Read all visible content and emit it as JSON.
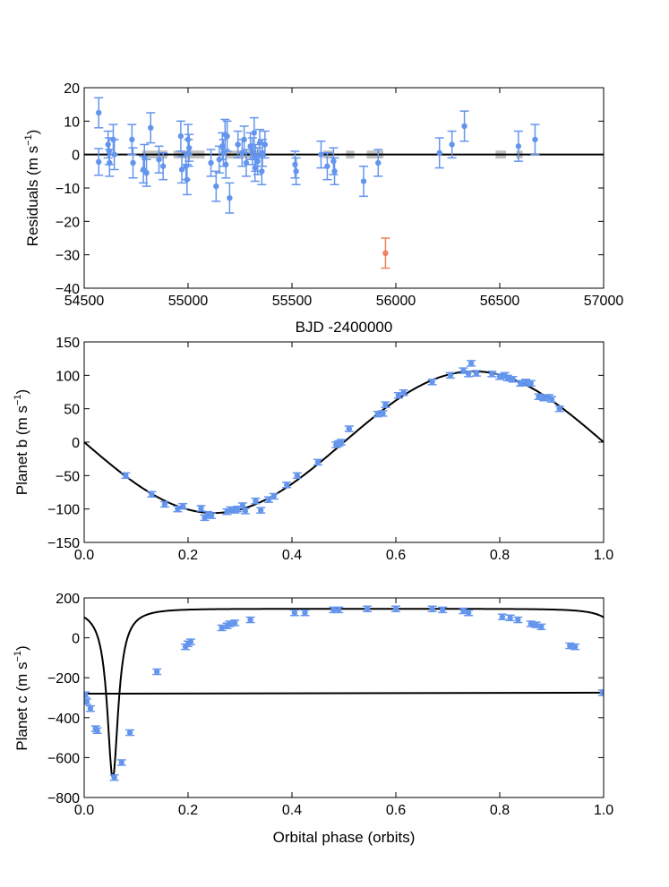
{
  "chart_data": [
    {
      "type": "scatter",
      "name": "residuals",
      "xlabel": "BJD -2400000",
      "ylabel_main": "Residuals (m s",
      "ylabel_sup": "−1",
      "ylabel_tail": ")",
      "xlim": [
        54500,
        57000
      ],
      "ylim": [
        -40,
        20
      ],
      "xticks": [
        54500,
        55000,
        55500,
        56000,
        56500,
        57000
      ],
      "yticks": [
        20,
        10,
        0,
        -10,
        -20,
        -30,
        -40
      ],
      "colors": {
        "points": "#6495ED",
        "outlier": "#F08060",
        "band": "#C0C0C0",
        "line": "#000000"
      },
      "zero_line": 0,
      "band_segments": [
        [
          54780,
          54900
        ],
        [
          54930,
          55080
        ],
        [
          55180,
          55360
        ],
        [
          55650,
          55700
        ],
        [
          55760,
          55800
        ],
        [
          55860,
          55940
        ],
        [
          56480,
          56530
        ],
        [
          56580,
          56610
        ]
      ],
      "points": [
        {
          "x": 54570,
          "y": 12.5,
          "err": 4.5
        },
        {
          "x": 54570,
          "y": -2.2,
          "err": 4.0
        },
        {
          "x": 54615,
          "y": 3.0,
          "err": 4.0
        },
        {
          "x": 54620,
          "y": 1.0,
          "err": 4.0
        },
        {
          "x": 54622,
          "y": -2.5,
          "err": 4.0
        },
        {
          "x": 54640,
          "y": 4.5,
          "err": 4.5
        },
        {
          "x": 54645,
          "y": 0.0,
          "err": 4.5
        },
        {
          "x": 54730,
          "y": 4.5,
          "err": 4.5
        },
        {
          "x": 54735,
          "y": -2.5,
          "err": 4.5
        },
        {
          "x": 54785,
          "y": -4.5,
          "err": 4.0
        },
        {
          "x": 54790,
          "y": -1.0,
          "err": 4.0
        },
        {
          "x": 54800,
          "y": -5.5,
          "err": 4.0
        },
        {
          "x": 54820,
          "y": 8.0,
          "err": 4.5
        },
        {
          "x": 54860,
          "y": -1.5,
          "err": 4.0
        },
        {
          "x": 54880,
          "y": -3.5,
          "err": 4.0
        },
        {
          "x": 54965,
          "y": 5.5,
          "err": 4.5
        },
        {
          "x": 54970,
          "y": -4.5,
          "err": 4.0
        },
        {
          "x": 54990,
          "y": -3.5,
          "err": 4.0
        },
        {
          "x": 54995,
          "y": -7.5,
          "err": 4.5
        },
        {
          "x": 55000,
          "y": 4.5,
          "err": 4.5
        },
        {
          "x": 55002,
          "y": 0.5,
          "err": 4.0
        },
        {
          "x": 55005,
          "y": 2.0,
          "err": 4.0
        },
        {
          "x": 55110,
          "y": -2.5,
          "err": 4.0
        },
        {
          "x": 55135,
          "y": -9.5,
          "err": 4.5
        },
        {
          "x": 55150,
          "y": -1.5,
          "err": 4.0
        },
        {
          "x": 55165,
          "y": 2.5,
          "err": 4.0
        },
        {
          "x": 55170,
          "y": 0.5,
          "err": 4.0
        },
        {
          "x": 55178,
          "y": 6.0,
          "err": 4.5
        },
        {
          "x": 55182,
          "y": -3.0,
          "err": 4.0
        },
        {
          "x": 55188,
          "y": 5.5,
          "err": 4.5
        },
        {
          "x": 55200,
          "y": -13.0,
          "err": 4.5
        },
        {
          "x": 55240,
          "y": 3.0,
          "err": 4.0
        },
        {
          "x": 55260,
          "y": 0.5,
          "err": 4.0
        },
        {
          "x": 55270,
          "y": 4.5,
          "err": 4.0
        },
        {
          "x": 55280,
          "y": -2.5,
          "err": 4.0
        },
        {
          "x": 55300,
          "y": 2.5,
          "err": 4.0
        },
        {
          "x": 55310,
          "y": 1.0,
          "err": 4.0
        },
        {
          "x": 55318,
          "y": 6.5,
          "err": 4.5
        },
        {
          "x": 55322,
          "y": -4.0,
          "err": 4.0
        },
        {
          "x": 55325,
          "y": -1.0,
          "err": 4.0
        },
        {
          "x": 55335,
          "y": -2.0,
          "err": 4.0
        },
        {
          "x": 55345,
          "y": 3.5,
          "err": 4.0
        },
        {
          "x": 55355,
          "y": -5.0,
          "err": 4.0
        },
        {
          "x": 55358,
          "y": 0.5,
          "err": 4.0
        },
        {
          "x": 55370,
          "y": 3.0,
          "err": 4.0
        },
        {
          "x": 55515,
          "y": -3.0,
          "err": 4.0
        },
        {
          "x": 55520,
          "y": -5.0,
          "err": 4.0
        },
        {
          "x": 55640,
          "y": 0.0,
          "err": 4.0
        },
        {
          "x": 55670,
          "y": -3.5,
          "err": 4.0
        },
        {
          "x": 55700,
          "y": -2.0,
          "err": 4.0
        },
        {
          "x": 55705,
          "y": -5.0,
          "err": 4.0
        },
        {
          "x": 55845,
          "y": -8.0,
          "err": 4.5
        },
        {
          "x": 55915,
          "y": -2.5,
          "err": 4.0
        },
        {
          "x": 56210,
          "y": 0.5,
          "err": 4.5
        },
        {
          "x": 56270,
          "y": 3.0,
          "err": 4.0
        },
        {
          "x": 56330,
          "y": 8.5,
          "err": 4.5
        },
        {
          "x": 56590,
          "y": 2.5,
          "err": 4.5
        },
        {
          "x": 56670,
          "y": 4.5,
          "err": 4.5
        }
      ],
      "outliers": [
        {
          "x": 55950,
          "y": -29.5,
          "err": 4.5
        }
      ]
    },
    {
      "type": "scatter",
      "name": "planet-b",
      "xlabel": "",
      "ylabel_main": "Planet b (m s",
      "ylabel_sup": "−1",
      "ylabel_tail": ")",
      "xlim": [
        0,
        1
      ],
      "ylim": [
        -150,
        150
      ],
      "xticks": [
        0.0,
        0.2,
        0.4,
        0.6,
        0.8,
        1.0
      ],
      "xtick_labels": [
        "0.0",
        "0.2",
        "0.4",
        "0.6",
        "0.8",
        "1.0"
      ],
      "yticks": [
        150,
        100,
        50,
        0,
        -50,
        -100,
        -150
      ],
      "colors": {
        "points": "#6495ED",
        "line": "#000000"
      },
      "model": {
        "kind": "sine",
        "amplitude": 106,
        "period": 1
      },
      "points": [
        {
          "x": 0.08,
          "y": -50
        },
        {
          "x": 0.13,
          "y": -78
        },
        {
          "x": 0.155,
          "y": -93
        },
        {
          "x": 0.18,
          "y": -100
        },
        {
          "x": 0.19,
          "y": -96
        },
        {
          "x": 0.225,
          "y": -99
        },
        {
          "x": 0.232,
          "y": -113
        },
        {
          "x": 0.238,
          "y": -108
        },
        {
          "x": 0.245,
          "y": -110
        },
        {
          "x": 0.275,
          "y": -104
        },
        {
          "x": 0.282,
          "y": -101
        },
        {
          "x": 0.29,
          "y": -102
        },
        {
          "x": 0.295,
          "y": -100
        },
        {
          "x": 0.305,
          "y": -95
        },
        {
          "x": 0.31,
          "y": -103
        },
        {
          "x": 0.33,
          "y": -88
        },
        {
          "x": 0.34,
          "y": -102
        },
        {
          "x": 0.355,
          "y": -86
        },
        {
          "x": 0.365,
          "y": -81
        },
        {
          "x": 0.39,
          "y": -64
        },
        {
          "x": 0.41,
          "y": -50
        },
        {
          "x": 0.45,
          "y": -30
        },
        {
          "x": 0.485,
          "y": -4
        },
        {
          "x": 0.49,
          "y": -2
        },
        {
          "x": 0.495,
          "y": 0
        },
        {
          "x": 0.51,
          "y": 20
        },
        {
          "x": 0.565,
          "y": 42
        },
        {
          "x": 0.575,
          "y": 43
        },
        {
          "x": 0.58,
          "y": 56
        },
        {
          "x": 0.605,
          "y": 70
        },
        {
          "x": 0.615,
          "y": 74
        },
        {
          "x": 0.67,
          "y": 90
        },
        {
          "x": 0.705,
          "y": 100
        },
        {
          "x": 0.73,
          "y": 107
        },
        {
          "x": 0.74,
          "y": 102
        },
        {
          "x": 0.745,
          "y": 118
        },
        {
          "x": 0.755,
          "y": 103
        },
        {
          "x": 0.785,
          "y": 102
        },
        {
          "x": 0.8,
          "y": 98
        },
        {
          "x": 0.81,
          "y": 100
        },
        {
          "x": 0.815,
          "y": 96
        },
        {
          "x": 0.825,
          "y": 94
        },
        {
          "x": 0.84,
          "y": 88
        },
        {
          "x": 0.85,
          "y": 90
        },
        {
          "x": 0.86,
          "y": 88
        },
        {
          "x": 0.875,
          "y": 68
        },
        {
          "x": 0.885,
          "y": 66
        },
        {
          "x": 0.895,
          "y": 67
        },
        {
          "x": 0.9,
          "y": 64
        },
        {
          "x": 0.915,
          "y": 50
        }
      ]
    },
    {
      "type": "scatter",
      "name": "planet-c",
      "xlabel": "Orbital phase (orbits)",
      "ylabel_main": "Planet c (m s",
      "ylabel_sup": "−1",
      "ylabel_tail": ")",
      "xlim": [
        0,
        1
      ],
      "ylim": [
        -800,
        200
      ],
      "xticks": [
        0.0,
        0.2,
        0.4,
        0.6,
        0.8,
        1.0
      ],
      "xtick_labels": [
        "0.0",
        "0.2",
        "0.4",
        "0.6",
        "0.8",
        "1.0"
      ],
      "yticks": [
        200,
        0,
        -200,
        -400,
        -600,
        -800
      ],
      "colors": {
        "points": "#6495ED",
        "line": "#000000"
      },
      "model": {
        "kind": "keplerian",
        "K": 425,
        "e": 0.82,
        "omega_deg": 90,
        "t_peri": 0.055,
        "offset": -280
      },
      "baseline": {
        "x": [
          0,
          1
        ],
        "y": [
          -280,
          -275
        ]
      },
      "points": [
        {
          "x": 0.002,
          "y": -285
        },
        {
          "x": 0.005,
          "y": -320
        },
        {
          "x": 0.012,
          "y": -355
        },
        {
          "x": 0.022,
          "y": -455
        },
        {
          "x": 0.025,
          "y": -465
        },
        {
          "x": 0.058,
          "y": -700
        },
        {
          "x": 0.072,
          "y": -625
        },
        {
          "x": 0.088,
          "y": -475
        },
        {
          "x": 0.14,
          "y": -170
        },
        {
          "x": 0.195,
          "y": -45
        },
        {
          "x": 0.2,
          "y": -30
        },
        {
          "x": 0.205,
          "y": -20
        },
        {
          "x": 0.265,
          "y": 50
        },
        {
          "x": 0.275,
          "y": 60
        },
        {
          "x": 0.28,
          "y": 70
        },
        {
          "x": 0.29,
          "y": 75
        },
        {
          "x": 0.32,
          "y": 90
        },
        {
          "x": 0.405,
          "y": 125
        },
        {
          "x": 0.425,
          "y": 125
        },
        {
          "x": 0.48,
          "y": 140
        },
        {
          "x": 0.49,
          "y": 140
        },
        {
          "x": 0.545,
          "y": 145
        },
        {
          "x": 0.6,
          "y": 145
        },
        {
          "x": 0.67,
          "y": 145
        },
        {
          "x": 0.69,
          "y": 140
        },
        {
          "x": 0.73,
          "y": 135
        },
        {
          "x": 0.74,
          "y": 125
        },
        {
          "x": 0.805,
          "y": 105
        },
        {
          "x": 0.82,
          "y": 100
        },
        {
          "x": 0.835,
          "y": 90
        },
        {
          "x": 0.86,
          "y": 70
        },
        {
          "x": 0.87,
          "y": 65
        },
        {
          "x": 0.88,
          "y": 55
        },
        {
          "x": 0.935,
          "y": -40
        },
        {
          "x": 0.945,
          "y": -45
        },
        {
          "x": 0.998,
          "y": -275
        }
      ]
    }
  ]
}
